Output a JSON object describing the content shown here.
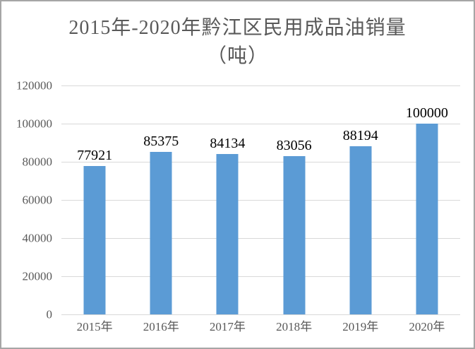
{
  "chart_data": {
    "type": "bar",
    "title": "2015年-2020年黔江区民用成品油销量（吨）",
    "title_lines": [
      "2015年-2020年黔江区民用成品油销量",
      "（吨）"
    ],
    "categories": [
      "2015年",
      "2016年",
      "2017年",
      "2018年",
      "2019年",
      "2020年"
    ],
    "values": [
      77921,
      85375,
      84134,
      83056,
      88194,
      100000
    ],
    "data_labels": [
      "77921",
      "85375",
      "84134",
      "83056",
      "88194",
      "100000"
    ],
    "xlabel": "",
    "ylabel": "",
    "ylim": [
      0,
      120000
    ],
    "yticks": [
      0,
      20000,
      40000,
      60000,
      80000,
      100000,
      120000
    ],
    "ytick_labels": [
      "0",
      "20000",
      "40000",
      "60000",
      "80000",
      "100000",
      "120000"
    ],
    "grid": true,
    "legend": "none",
    "colors": {
      "bar": "#5b9bd5",
      "gridline": "#d9d9d9",
      "axis_line": "#d9d9d9",
      "tick_label": "#595959",
      "title": "#595959",
      "data_label": "#000000",
      "frame_border": "#a6a6a6",
      "background": "#ffffff"
    }
  }
}
